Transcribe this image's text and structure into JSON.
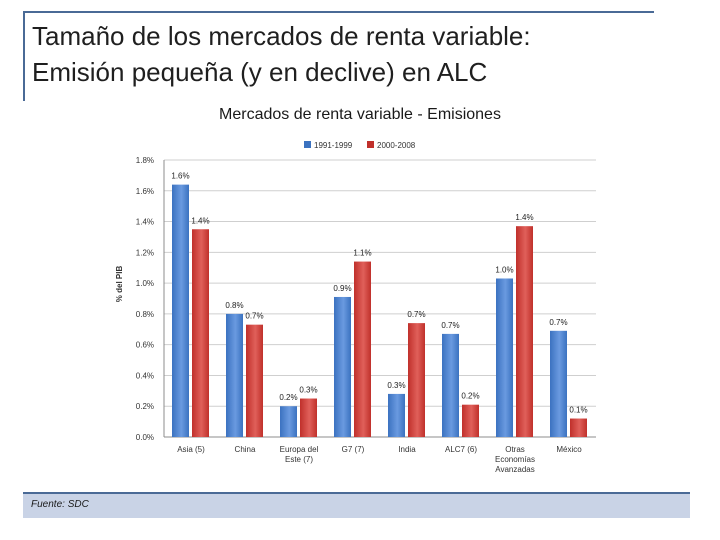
{
  "slide": {
    "title_line1": "Tamaño de los mercados de renta variable:",
    "title_line2": "Emisión pequeña (y en declive) en ALC",
    "chart_heading": "Mercados de renta variable - Emisiones",
    "footer_source": "Fuente: SDC"
  },
  "colors": {
    "series_1": "#3b72c0",
    "series_2": "#c0302b",
    "frame": "#4a6a96",
    "footer_fill": "#c9d3e6"
  },
  "chart_data": {
    "type": "bar",
    "title": "",
    "xlabel": "",
    "ylabel": "% del PIB",
    "ylim": [
      0,
      1.8
    ],
    "yticks": [
      "0.0%",
      "0.2%",
      "0.4%",
      "0.6%",
      "0.8%",
      "1.0%",
      "1.2%",
      "1.4%",
      "1.6%",
      "1.8%"
    ],
    "grid": true,
    "legend_position": "top",
    "categories": [
      [
        "Asia (5)"
      ],
      [
        "China"
      ],
      [
        "Europa del",
        "Este (7)"
      ],
      [
        "G7 (7)"
      ],
      [
        "India"
      ],
      [
        "ALC7 (6)"
      ],
      [
        "Otras",
        "Economías",
        "Avanzadas"
      ],
      [
        "México"
      ]
    ],
    "series": [
      {
        "name": "1991-1999",
        "values": [
          1.64,
          0.8,
          0.2,
          0.91,
          0.28,
          0.67,
          1.03,
          0.69
        ],
        "labels": [
          "1.6%",
          "0.8%",
          "0.2%",
          "0.9%",
          "0.3%",
          "0.7%",
          "1.0%",
          "0.7%"
        ]
      },
      {
        "name": "2000-2008",
        "values": [
          1.35,
          0.73,
          0.25,
          1.14,
          0.74,
          0.21,
          1.37,
          0.12
        ],
        "labels": [
          "1.4%",
          "0.7%",
          "0.3%",
          "1.1%",
          "0.7%",
          "0.2%",
          "1.4%",
          "0.1%"
        ]
      }
    ]
  }
}
